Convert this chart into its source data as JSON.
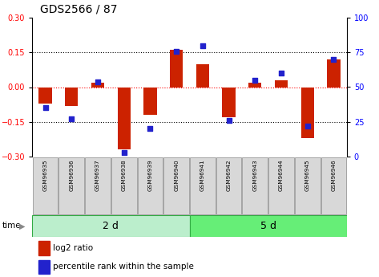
{
  "title": "GDS2566 / 87",
  "samples": [
    "GSM96935",
    "GSM96936",
    "GSM96937",
    "GSM96938",
    "GSM96939",
    "GSM96940",
    "GSM96941",
    "GSM96942",
    "GSM96943",
    "GSM96944",
    "GSM96945",
    "GSM96946"
  ],
  "log2_ratio": [
    -0.07,
    -0.08,
    0.02,
    -0.27,
    -0.12,
    0.163,
    0.1,
    -0.13,
    0.02,
    0.03,
    -0.22,
    0.12
  ],
  "percentile": [
    35,
    27,
    54,
    3,
    20,
    76,
    80,
    26,
    55,
    60,
    22,
    70
  ],
  "group_labels": [
    "2 d",
    "5 d"
  ],
  "bar_color": "#cc2200",
  "dot_color": "#2222cc",
  "ylim": [
    -0.3,
    0.3
  ],
  "yticks_left": [
    -0.3,
    -0.15,
    0.0,
    0.15,
    0.3
  ],
  "yticks_right": [
    0,
    25,
    50,
    75,
    100
  ],
  "group_color_1": "#bbeecc",
  "group_color_2": "#66ee77",
  "legend_items": [
    "log2 ratio",
    "percentile rank within the sample"
  ]
}
